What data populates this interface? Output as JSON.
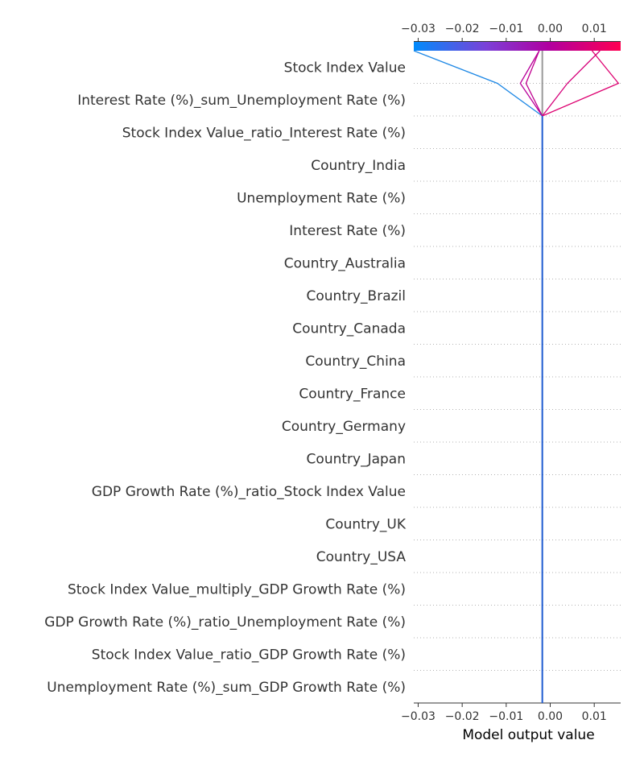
{
  "chart_data": {
    "type": "decision_plot",
    "xlabel": "Model output value",
    "xlim": [
      -0.031,
      0.016
    ],
    "base_value": -0.0018,
    "xticks": [
      -0.03,
      -0.02,
      -0.01,
      0.0,
      0.01
    ],
    "xtick_labels": [
      "−0.03",
      "−0.02",
      "−0.01",
      "0.00",
      "0.01"
    ],
    "features": [
      "Stock Index Value",
      "Interest Rate (%)_sum_Unemployment Rate (%)",
      "Stock Index Value_ratio_Interest Rate (%)",
      "Country_India",
      "Unemployment Rate (%)",
      "Interest Rate (%)",
      "Country_Australia",
      "Country_Brazil",
      "Country_Canada",
      "Country_China",
      "Country_France",
      "Country_Germany",
      "Country_Japan",
      "GDP Growth Rate (%)_ratio_Stock Index Value",
      "Country_UK",
      "Country_USA",
      "Stock Index Value_multiply_GDP Growth Rate (%)",
      "GDP Growth Rate (%)_ratio_Unemployment Rate (%)",
      "Stock Index Value_ratio_GDP Growth Rate (%)",
      "Unemployment Rate (%)_sum_GDP Growth Rate (%)"
    ],
    "series": [
      {
        "values": [
          -0.031,
          -0.012,
          -0.0018
        ],
        "color": "#1e88e5"
      },
      {
        "values": [
          0.0113,
          0.0039,
          -0.0018
        ],
        "color": "#d6007a"
      },
      {
        "values": [
          0.0095,
          0.0155,
          -0.0018
        ],
        "color": "#dd0070"
      },
      {
        "values": [
          -0.0025,
          -0.0055,
          -0.0018
        ],
        "color": "#c00090"
      },
      {
        "values": [
          -0.0025,
          -0.0068,
          -0.0018
        ],
        "color": "#b8009a"
      }
    ],
    "colorbar": {
      "stops": [
        "#008bfb",
        "#7b40d8",
        "#b000a0",
        "#ff0052"
      ]
    }
  }
}
